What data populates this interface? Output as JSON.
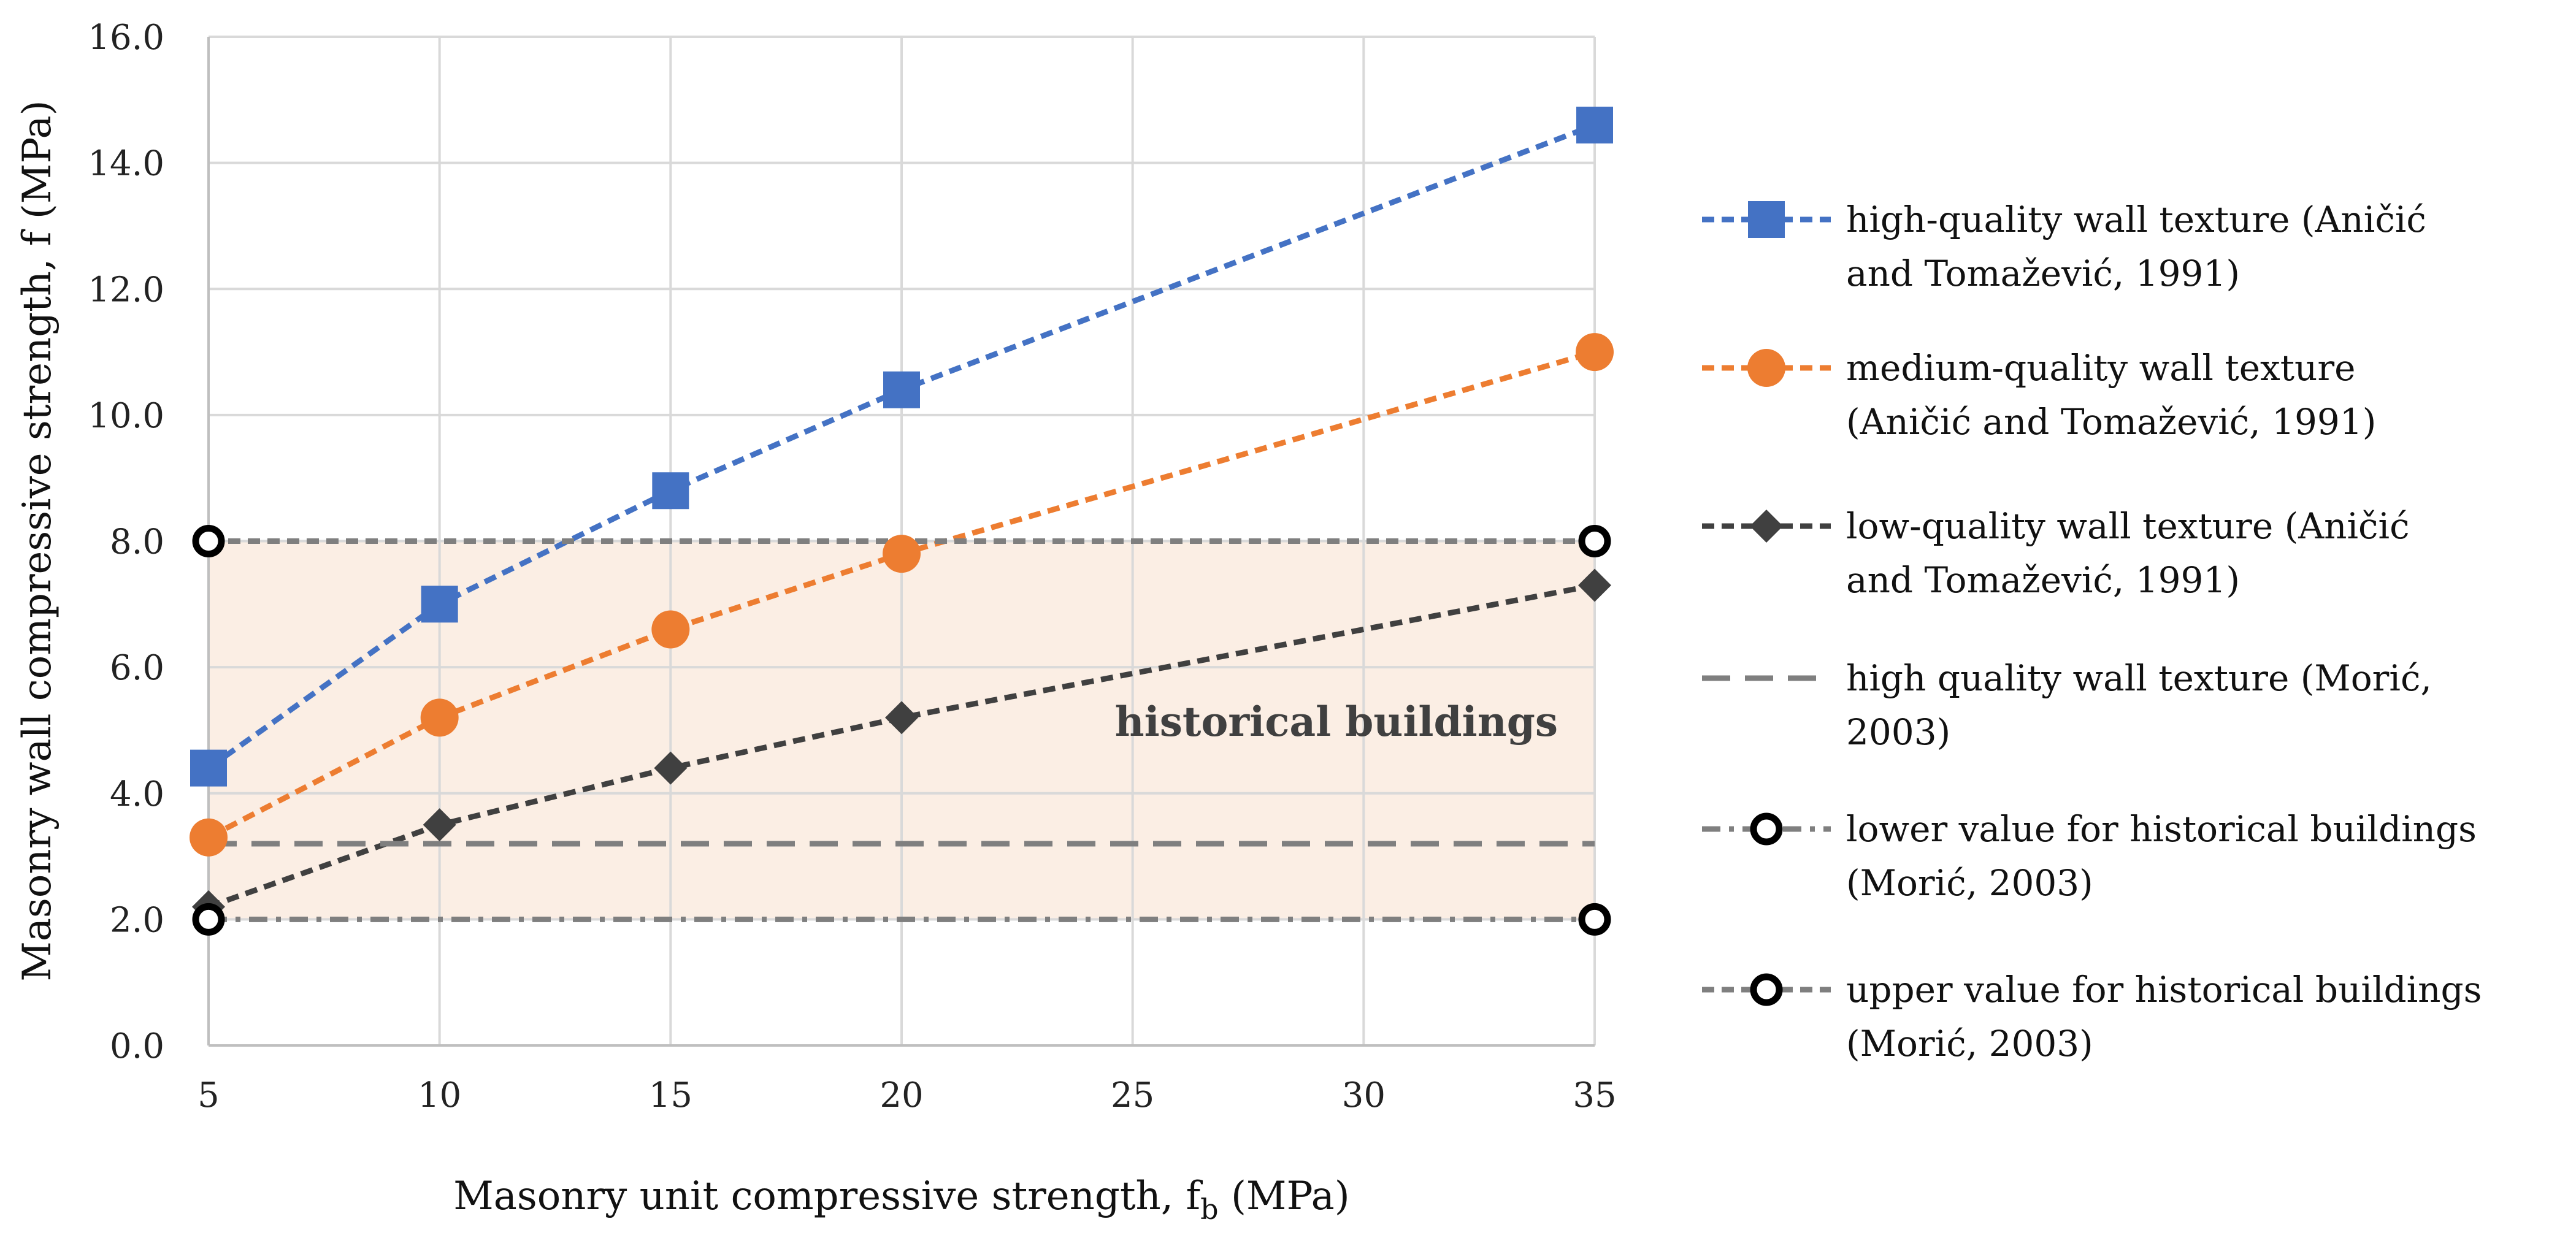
{
  "chart_data": {
    "type": "line",
    "xlabel": "Masonry unit compressive strength, f",
    "xlabel_sub": "b",
    "xlabel_unit": " (MPa)",
    "ylabel": "Masonry wall compressive strength, f (MPa)",
    "x_ticks": [
      "5",
      "10",
      "15",
      "20",
      "25",
      "30",
      "35"
    ],
    "y_ticks": [
      "0.0",
      "2.0",
      "4.0",
      "6.0",
      "8.0",
      "10.0",
      "12.0",
      "14.0",
      "16.0"
    ],
    "xlim": [
      5,
      35
    ],
    "ylim": [
      0,
      16
    ],
    "grid": true,
    "legend_position": "right",
    "shaded_band": {
      "from": 2.0,
      "to": 8.0,
      "color": "#FBEEE4"
    },
    "annotation": {
      "text": "historical buildings",
      "x": 30,
      "y": 5.0
    },
    "series": [
      {
        "name": [
          "high-quality wall texture (Aničić",
          "and Tomažević, 1991)"
        ],
        "x": [
          5,
          10,
          15,
          20,
          35
        ],
        "y": [
          4.4,
          7.0,
          8.8,
          10.4,
          14.6
        ],
        "color": "#4472C4",
        "marker": "square",
        "line": "dashed"
      },
      {
        "name": [
          "medium-quality wall texture",
          "(Aničić and Tomažević, 1991)"
        ],
        "x": [
          5,
          10,
          15,
          20,
          35
        ],
        "y": [
          3.3,
          5.2,
          6.6,
          7.8,
          11.0
        ],
        "color": "#ED7D31",
        "marker": "circle",
        "line": "dashed"
      },
      {
        "name": [
          "low-quality wall texture (Aničić",
          "and Tomažević, 1991)"
        ],
        "x": [
          5,
          10,
          15,
          20,
          35
        ],
        "y": [
          2.2,
          3.5,
          4.4,
          5.2,
          7.3
        ],
        "color": "#404040",
        "marker": "diamond",
        "line": "dashed"
      },
      {
        "name": [
          "high quality wall texture (Morić,",
          "2003)"
        ],
        "x": [
          5,
          35
        ],
        "y": [
          3.2,
          3.2
        ],
        "color": "#7F7F7F",
        "marker": "none",
        "line": "longdash"
      },
      {
        "name": [
          "lower value for historical buildings",
          "(Morić, 2003)"
        ],
        "x": [
          5,
          35
        ],
        "y": [
          2.0,
          2.0
        ],
        "color": "#7F7F7F",
        "marker": "open-circle",
        "line": "dashdot"
      },
      {
        "name": [
          "upper value for historical buildings",
          "(Morić, 2003)"
        ],
        "x": [
          5,
          35
        ],
        "y": [
          8.0,
          8.0
        ],
        "color": "#7F7F7F",
        "marker": "open-circle",
        "line": "dashed"
      }
    ]
  }
}
